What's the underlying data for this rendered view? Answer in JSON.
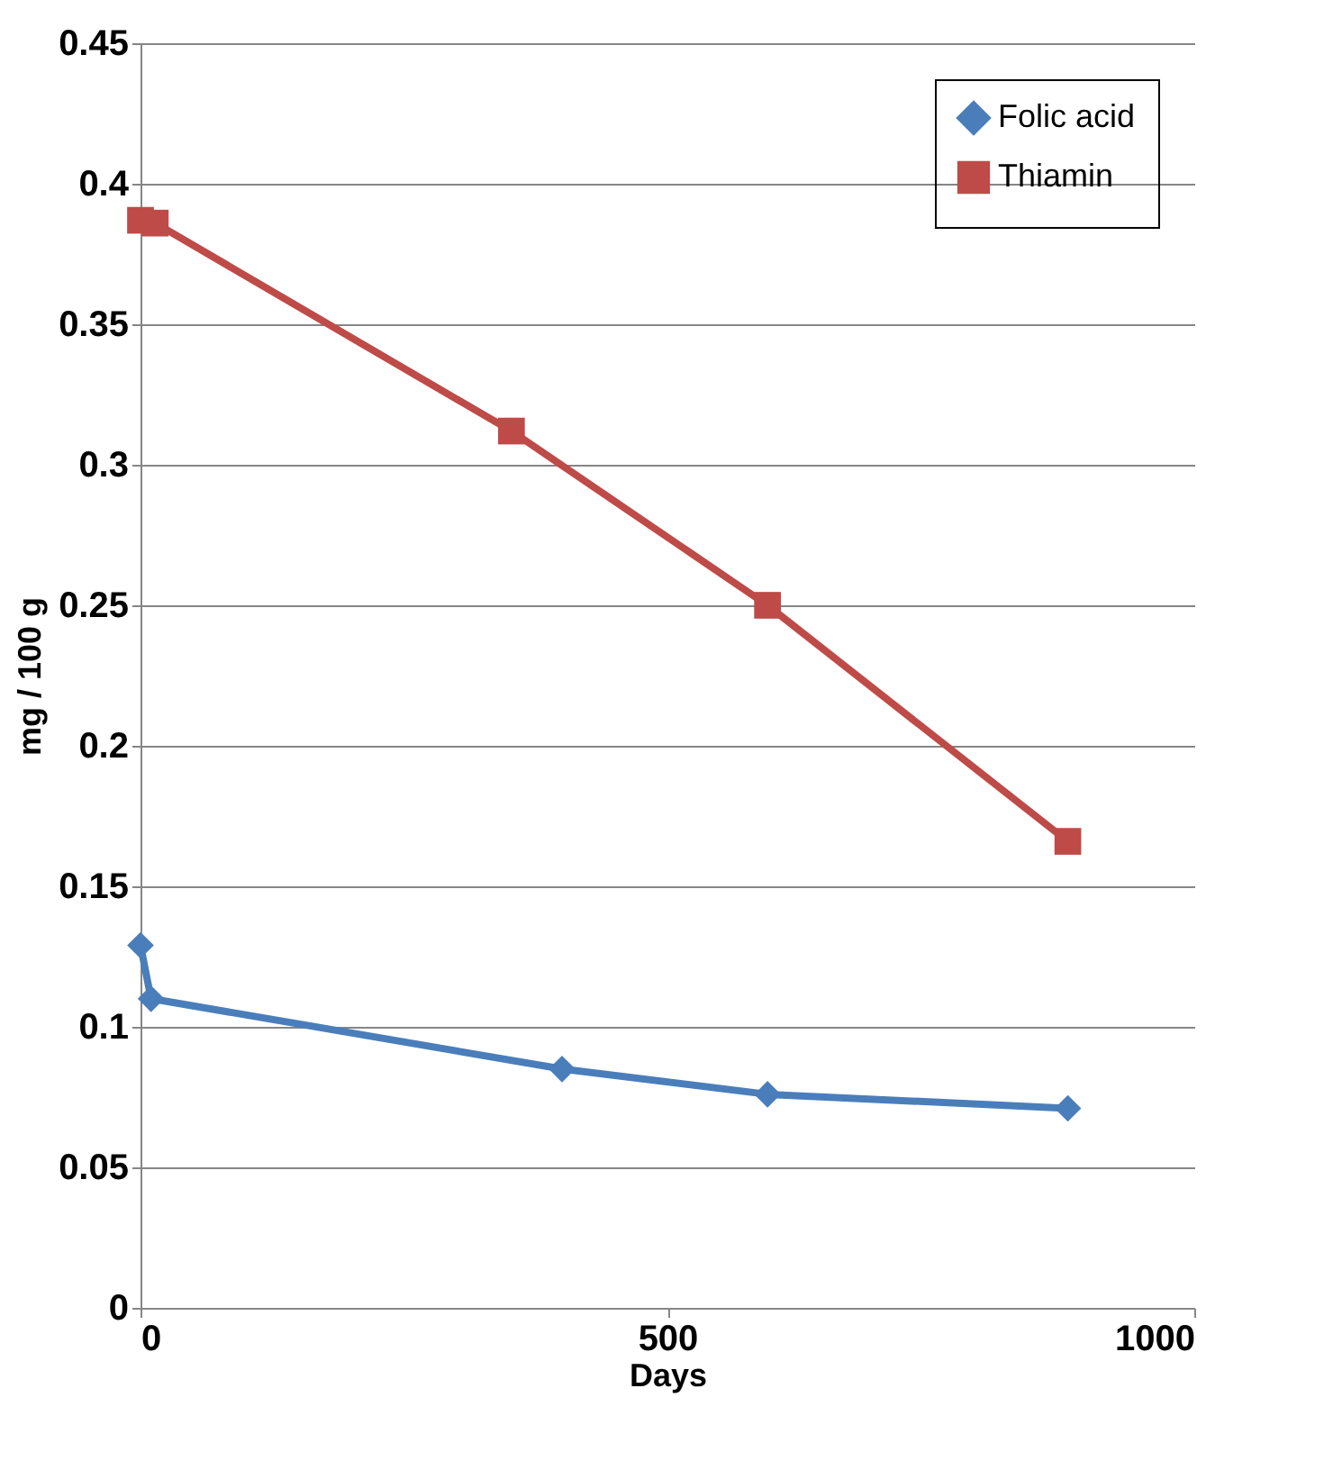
{
  "chart_data": {
    "type": "line",
    "xlabel": "Days",
    "ylabel": "mg / 100 g",
    "xlim": [
      0,
      1000
    ],
    "xticks": [
      0,
      500,
      1000
    ],
    "ylim": [
      0,
      0.45
    ],
    "yticks": [
      0,
      0.05,
      0.1,
      0.15,
      0.2,
      0.25,
      0.3,
      0.35,
      0.4,
      0.45
    ],
    "grid": "y",
    "legend": "top right",
    "series": [
      {
        "name": "Folic acid",
        "color": "#4a7ebb",
        "marker": "diamond",
        "x": [
          0,
          10,
          400,
          595,
          880
        ],
        "values": [
          0.129,
          0.11,
          0.085,
          0.076,
          0.071
        ]
      },
      {
        "name": "Thiamin",
        "color": "#be4b48",
        "marker": "square",
        "x": [
          0,
          14,
          352,
          595,
          880
        ],
        "values": [
          0.387,
          0.386,
          0.312,
          0.25,
          0.166
        ]
      }
    ]
  }
}
